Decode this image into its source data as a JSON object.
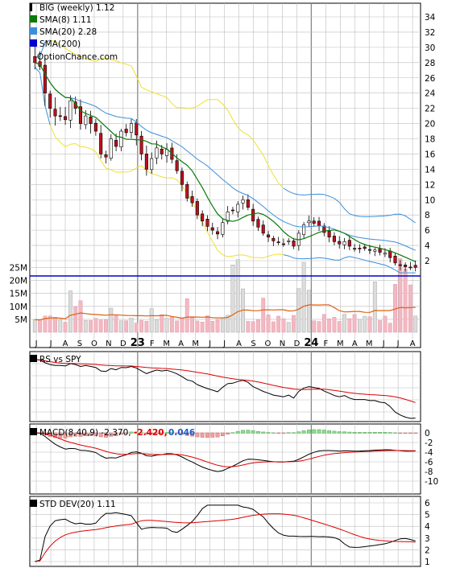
{
  "colors": {
    "background": "#ffffff",
    "panel_border": "#000000",
    "grid": "#bdbdbd",
    "up_candle": "#ffffff",
    "down_candle": "#c0101c",
    "sma8": "#0b7a0b",
    "sma20": "#3a8fdc",
    "sma200": "#0000cc",
    "bollinger": "#3a8fdc",
    "bollinger_upper_wide": "#f0e030",
    "volume_up": "#dcdcdc",
    "volume_down": "#f4b8c2",
    "volume_avg": "#e06010",
    "rs_line": "#000000",
    "rs_avg": "#dd0000",
    "macd_line": "#000000",
    "macd_signal": "#dd0000",
    "macd_hist_pos": "#90d890",
    "macd_hist_neg": "#f0a0a0",
    "macd_value_red": "#dd0000",
    "macd_value_blue": "#1a5ec8",
    "std_line": "#000000",
    "std_avg": "#dd0000"
  },
  "legend": {
    "title": "BIG (weekly) 1.12",
    "sma8": "SMA(8) 1.11",
    "sma20": "SMA(20) 2.28",
    "sma200": "SMA(200)",
    "source": "OptionChance.com"
  },
  "month_labels": [
    {
      "label": "J",
      "bold": false
    },
    {
      "label": "J",
      "bold": false
    },
    {
      "label": "A",
      "bold": false
    },
    {
      "label": "S",
      "bold": false
    },
    {
      "label": "O",
      "bold": false
    },
    {
      "label": "N",
      "bold": false
    },
    {
      "label": "D",
      "bold": false
    },
    {
      "label": "23",
      "bold": true
    },
    {
      "label": "F",
      "bold": false
    },
    {
      "label": "M",
      "bold": false
    },
    {
      "label": "A",
      "bold": false
    },
    {
      "label": "M",
      "bold": false
    },
    {
      "label": "J",
      "bold": false
    },
    {
      "label": "J",
      "bold": false
    },
    {
      "label": "A",
      "bold": false
    },
    {
      "label": "S",
      "bold": false
    },
    {
      "label": "O",
      "bold": false
    },
    {
      "label": "N",
      "bold": false
    },
    {
      "label": "D",
      "bold": false
    },
    {
      "label": "24",
      "bold": true
    },
    {
      "label": "F",
      "bold": false
    },
    {
      "label": "M",
      "bold": false
    },
    {
      "label": "A",
      "bold": false
    },
    {
      "label": "M",
      "bold": false
    },
    {
      "label": "J",
      "bold": false
    },
    {
      "label": "J",
      "bold": false
    },
    {
      "label": "A",
      "bold": false
    }
  ],
  "chart_data": [
    {
      "type": "candlestick",
      "title": "BIG (weekly) 1.12",
      "series": [
        {
          "name": "SMA(8) 1.11"
        },
        {
          "name": "SMA(20) 2.28"
        },
        {
          "name": "SMA(200)"
        }
      ],
      "y_ticks": [
        "34",
        "32",
        "30",
        "28",
        "26",
        "24",
        "22",
        "20",
        "18",
        "16",
        "14",
        "12",
        "10",
        "8",
        "6",
        "4",
        "2"
      ],
      "ylim": [
        0,
        35
      ],
      "price_close": [
        28,
        27.5,
        24,
        22,
        21,
        21,
        20.5,
        23,
        22,
        20,
        21,
        20,
        19,
        16,
        15.6,
        18,
        17,
        19,
        18.8,
        20,
        18.5,
        16,
        14,
        15.4,
        16.8,
        16,
        16.6,
        15.3,
        13.8,
        12,
        10.2,
        9.6,
        8,
        7.2,
        6.5,
        6,
        5.5,
        7,
        8.4,
        8.6,
        9.4,
        10,
        9,
        7.2,
        6.4,
        5.6,
        5.1,
        4.6,
        4.4,
        4.2,
        4.6,
        3.9,
        5.6,
        6.7,
        7.2,
        6.9,
        6.6,
        5.7,
        5.1,
        4.5,
        4.2,
        4.5,
        3.9,
        3.6,
        3.6,
        3.6,
        3.4,
        3.4,
        3.1,
        3,
        2.4,
        1.7,
        1.4,
        1.2,
        1.1,
        1.12
      ],
      "grid": true,
      "volume_y_ticks": [
        "25M",
        "20M",
        "15M",
        "10M",
        "5M"
      ]
    },
    {
      "type": "line",
      "title": "RS vs SPY",
      "series": [
        {},
        {}
      ],
      "grid": true
    },
    {
      "type": "line",
      "title": "MACD(8,40,9) -2.370,",
      "values_shown": [
        "-2.420,",
        "0.046"
      ],
      "y_ticks": [
        "0",
        "-2",
        "-4",
        "-6",
        "-8",
        "-10"
      ],
      "ylim": [
        -11,
        1
      ],
      "grid": true
    },
    {
      "type": "line",
      "title": "STD DEV(20) 1.11",
      "y_ticks": [
        "6",
        "5",
        "4",
        "3",
        "2",
        "1"
      ],
      "ylim": [
        0.5,
        6.5
      ],
      "grid": true
    }
  ]
}
